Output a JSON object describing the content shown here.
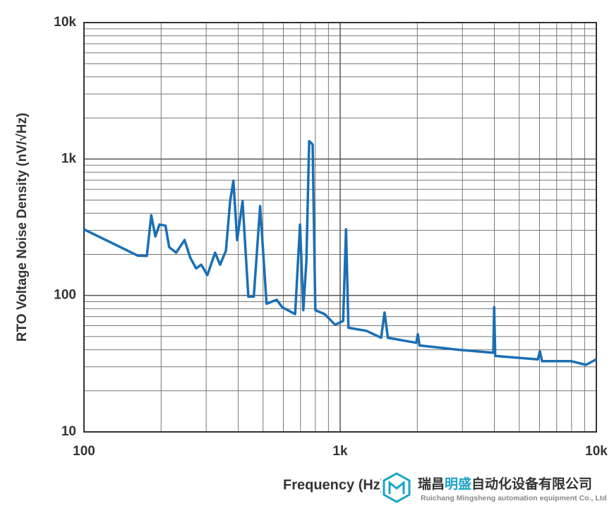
{
  "chart_data": {
    "type": "line",
    "x_label": "Frequency (Hz)",
    "y_label": "RTO Voltage Noise Density (nV/√Hz)",
    "x": [
      100,
      130,
      162,
      176,
      183,
      190,
      197,
      208,
      215,
      229,
      247,
      260,
      274,
      287,
      303,
      325,
      340,
      358,
      372,
      383,
      396,
      416,
      438,
      460,
      487,
      516,
      565,
      594,
      667,
      697,
      718,
      738,
      757,
      781,
      800,
      870,
      956,
      1027,
      1054,
      1077,
      1268,
      1445,
      1490,
      1535,
      1982,
      2010,
      2040,
      2900,
      3960,
      3990,
      4030,
      5910,
      6020,
      6140,
      8000,
      9100,
      10000
    ],
    "series": [
      {
        "color": "#1a6fb5",
        "values": [
          305,
          240,
          196,
          195,
          387,
          271,
          331,
          325,
          226,
          206,
          255,
          189,
          158,
          168,
          141,
          206,
          168,
          213,
          491,
          693,
          255,
          491,
          98,
          98,
          452,
          87,
          93,
          82,
          73,
          331,
          78,
          178,
          1352,
          1280,
          78,
          73,
          61,
          65,
          305,
          58,
          55,
          49,
          75,
          49,
          45,
          52,
          43,
          40,
          38,
          82,
          36,
          34,
          39,
          33,
          33,
          31,
          34
        ]
      }
    ],
    "log_x": true,
    "log_y": true,
    "xlim": [
      100,
      10000
    ],
    "ylim": [
      10,
      10000
    ],
    "xticks": [
      {
        "value": 100,
        "label": "100"
      },
      {
        "value": 1000,
        "label": "1k"
      },
      {
        "value": 10000,
        "label": "10k"
      }
    ],
    "yticks": [
      {
        "value": 10,
        "label": "10"
      },
      {
        "value": 100,
        "label": "100"
      },
      {
        "value": 1000,
        "label": "1k"
      },
      {
        "value": 10000,
        "label": "10k"
      }
    ],
    "grid": true
  },
  "watermark": {
    "name": [
      "瑞昌",
      "明盛",
      "自动化设备有限公司"
    ],
    "subtitle": "Ruichang Mingsheng automation equipment Co., Ltd"
  }
}
